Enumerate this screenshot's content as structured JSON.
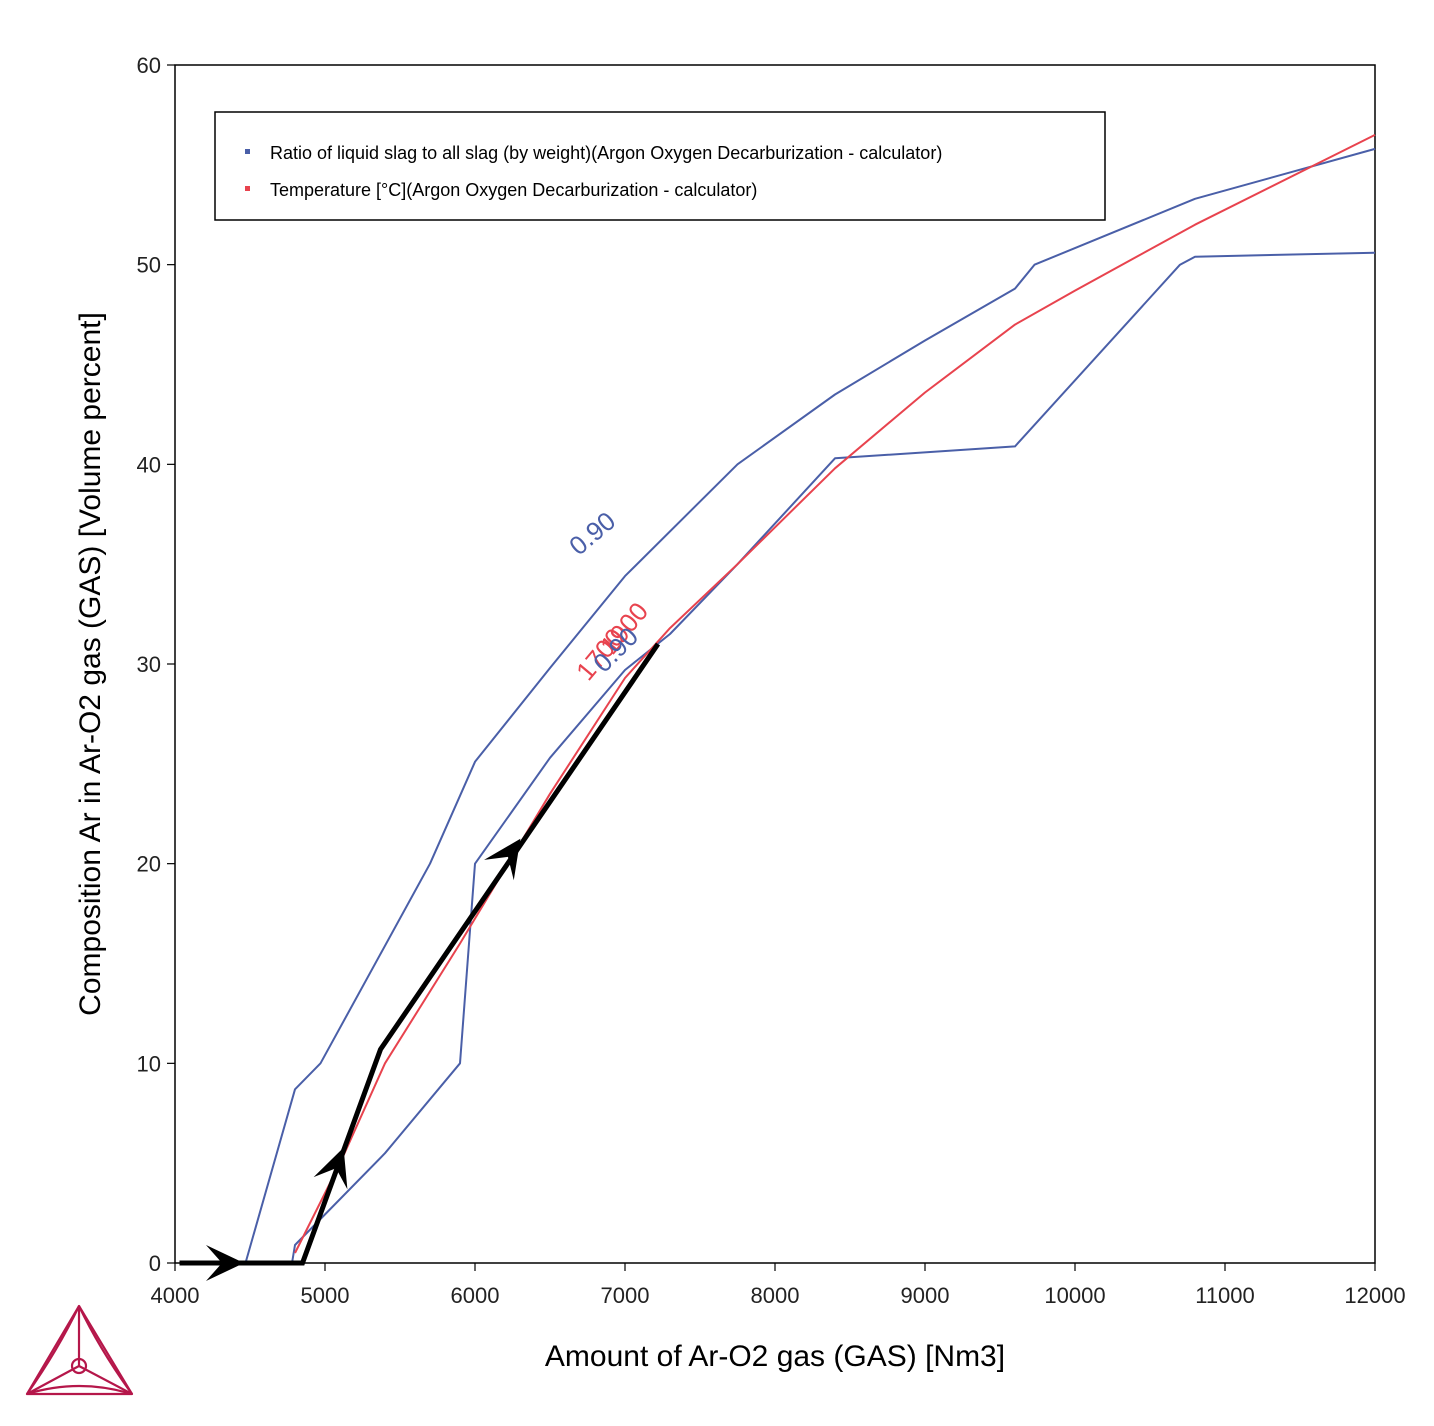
{
  "chart_data": {
    "type": "line",
    "xlabel": "Amount of Ar-O2 gas (GAS) [Nm3]",
    "ylabel": "Composition Ar in Ar-O2 gas (GAS) [Volume percent]",
    "xlim": [
      4000,
      12000
    ],
    "ylim": [
      0,
      60
    ],
    "x_ticks": [
      4000,
      5000,
      6000,
      7000,
      8000,
      9000,
      10000,
      11000,
      12000
    ],
    "y_ticks": [
      0,
      10,
      20,
      30,
      40,
      50,
      60
    ],
    "x_tick_labels": [
      "4000",
      "5000",
      "6000",
      "7000",
      "8000",
      "9000",
      "10000",
      "11000",
      "12000"
    ],
    "y_tick_labels": [
      "0",
      "10",
      "20",
      "30",
      "40",
      "50",
      "60"
    ],
    "grid": false,
    "legend_position": "top-left",
    "legend": [
      {
        "label": "Ratio of liquid slag to all slag (by weight)(Argon Oxygen Decarburization - calculator)",
        "color": "#4a5fa8"
      },
      {
        "label": "Temperature [°C](Argon Oxygen Decarburization - calculator)",
        "color": "#e8434e"
      }
    ],
    "series": [
      {
        "color": "#4a5fa8",
        "points": [
          [
            4470,
            0
          ],
          [
            4800,
            8.7
          ],
          [
            4970,
            10
          ],
          [
            5700,
            20
          ],
          [
            6000,
            25.1
          ],
          [
            6500,
            29.8
          ],
          [
            7000,
            34.4
          ],
          [
            7750,
            40
          ],
          [
            8400,
            43.5
          ],
          [
            9000,
            46.2
          ],
          [
            9600,
            48.8
          ],
          [
            9730,
            50
          ],
          [
            10800,
            53.3
          ],
          [
            12000,
            55.8
          ]
        ]
      },
      {
        "color": "#4a5fa8",
        "points": [
          [
            4780,
            0
          ],
          [
            4800,
            0.9
          ],
          [
            5400,
            5.5
          ],
          [
            5900,
            10
          ],
          [
            6000,
            20
          ],
          [
            6500,
            25.3
          ],
          [
            7000,
            29.7
          ],
          [
            7300,
            31.5
          ],
          [
            7750,
            35
          ],
          [
            8400,
            40.3
          ],
          [
            9600,
            40.9
          ],
          [
            10700,
            50
          ],
          [
            10800,
            50.4
          ],
          [
            12000,
            50.6
          ]
        ]
      },
      {
        "color": "#e8434e",
        "points": [
          [
            4800,
            0.5
          ],
          [
            5100,
            5
          ],
          [
            5400,
            10
          ],
          [
            5900,
            16
          ],
          [
            6500,
            23.5
          ],
          [
            7000,
            29.3
          ],
          [
            7300,
            31.8
          ],
          [
            7750,
            35
          ],
          [
            8400,
            39.8
          ],
          [
            9000,
            43.6
          ],
          [
            9600,
            47
          ],
          [
            10000,
            48.7
          ],
          [
            10800,
            52
          ],
          [
            12000,
            56.5
          ]
        ]
      }
    ],
    "path": {
      "color": "#000000",
      "points": [
        [
          4030,
          0
        ],
        [
          4850,
          0
        ],
        [
          5370,
          10.7
        ],
        [
          7220,
          31
        ]
      ],
      "arrows": [
        [
          4420,
          0
        ],
        [
          5110,
          5.5
        ],
        [
          6280,
          21
        ]
      ]
    },
    "contour_labels": [
      {
        "text": "0.90",
        "x": 6820,
        "y": 36.2,
        "color": "#4a5fa8",
        "angle": -40
      },
      {
        "text": "1700",
        "x": 6880,
        "y": 30.2,
        "color": "#e8434e",
        "angle": -50
      },
      {
        "text": "1900",
        "x": 7040,
        "y": 31.5,
        "color": "#e8434e",
        "angle": -50
      },
      {
        "text": "0.90",
        "x": 6980,
        "y": 30.4,
        "color": "#4a5fa8",
        "angle": -45
      }
    ]
  },
  "logo": {
    "name": "thermo-calc-logo",
    "color": "#b5174a"
  }
}
